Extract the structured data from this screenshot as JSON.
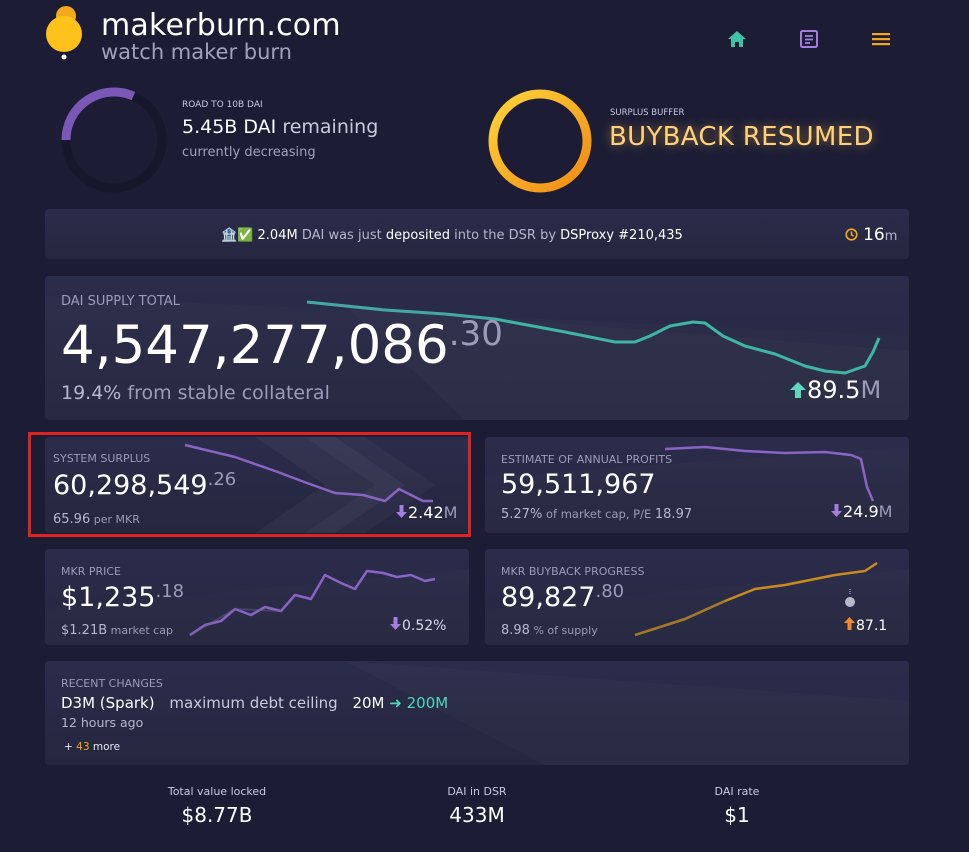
{
  "header": {
    "site_name": "makerburn.com",
    "tagline": "watch maker burn",
    "nav": [
      {
        "icon": "home-icon"
      },
      {
        "icon": "document-icon"
      },
      {
        "icon": "menu-icon"
      }
    ]
  },
  "road": {
    "label": "ROAD TO 10B DAI",
    "amount": "5.45B DAI",
    "suffix": " remaining",
    "status": "currently decreasing",
    "progress": 0.545
  },
  "surplus_buffer": {
    "label": "SURPLUS BUFFER",
    "status": "BUYBACK RESUMED"
  },
  "ticker": {
    "emoji": "🏦✅",
    "amount": "2.04M",
    "text1": " DAI was just ",
    "action": "deposited",
    "text2": " into the DSR by ",
    "actor": "DSProxy #210,435",
    "time_value": "16",
    "time_unit": "m"
  },
  "supply": {
    "label": "DAI SUPPLY TOTAL",
    "int": "4,547,277,086",
    "dec": ".30",
    "pct": "19.4%",
    "pct_text": " from stable collateral",
    "change_value": "89.5",
    "change_unit": "M"
  },
  "surplus": {
    "label": "SYSTEM SURPLUS",
    "int": "60,298,549",
    "dec": ".26",
    "per_value": "65.96",
    "per_text": " per MKR",
    "change_value": "2.42",
    "change_unit": "M"
  },
  "profits": {
    "label": "ESTIMATE OF ANNUAL PROFITS",
    "value": "59,511,967",
    "pct": "5.27%",
    "pct_text": " of market cap, P/E ",
    "pe": "18.97",
    "change_value": "24.9",
    "change_unit": "M"
  },
  "mkr_price": {
    "label": "MKR PRICE",
    "int": "$1,235",
    "dec": ".18",
    "cap": "$1.21B",
    "cap_text": " market cap",
    "change": "0.52%"
  },
  "buyback": {
    "label": "MKR BUYBACK PROGRESS",
    "int": "89,827",
    "dec": ".80",
    "pct": "8.98",
    "pct_text": " % of supply",
    "change": "87.1"
  },
  "recent": {
    "label": "RECENT CHANGES",
    "name": "D3M (Spark)",
    "param": "maximum debt ceiling",
    "from": "20M",
    "to": "200M",
    "ago": "12 hours ago",
    "more_prefix": "+ ",
    "more_count": "43",
    "more_suffix": " more"
  },
  "footer": [
    {
      "label": "Total value locked",
      "value": "$8.77B"
    },
    {
      "label": "DAI in DSR",
      "value": "433M"
    },
    {
      "label": "DAI rate",
      "value": "$1"
    }
  ],
  "colors": {
    "teal": "#3fb5a3",
    "purple": "#8a63c4",
    "orange": "#f0a020",
    "gold": "#ffd27a",
    "highlight": "#e0231c"
  }
}
